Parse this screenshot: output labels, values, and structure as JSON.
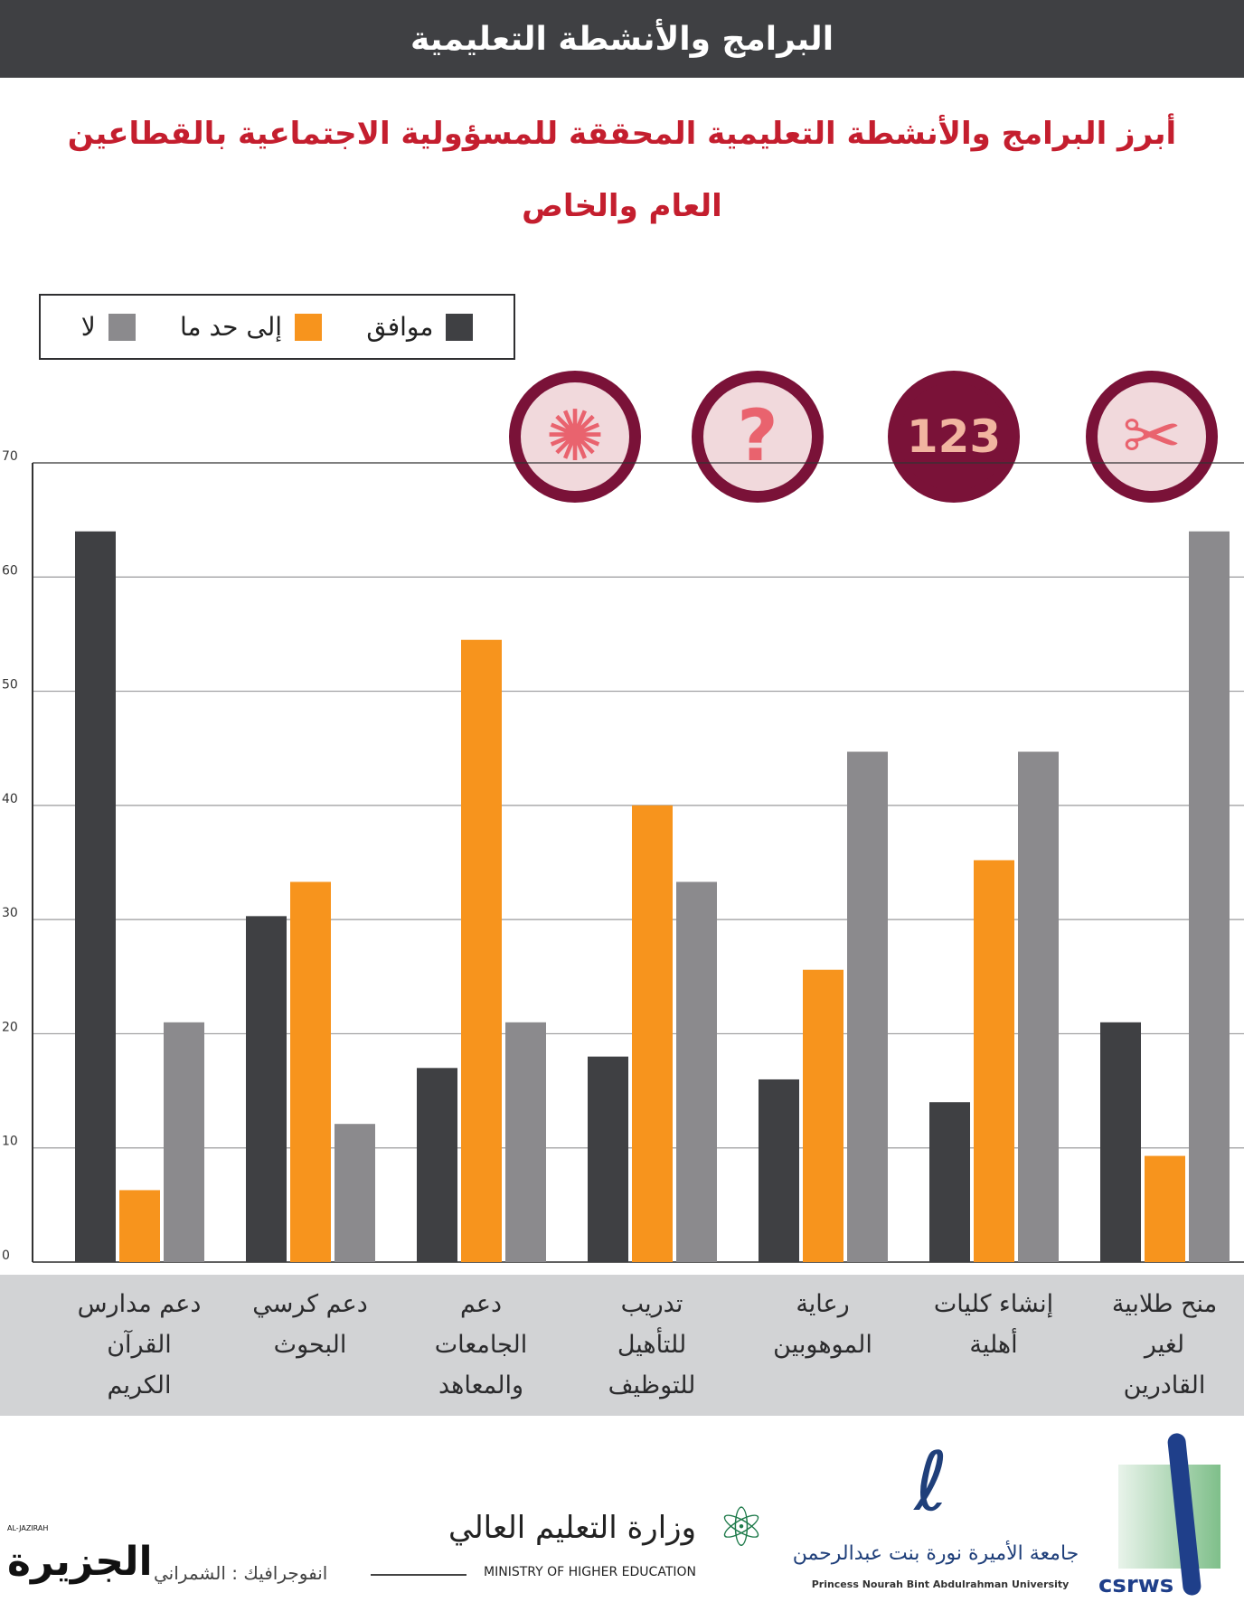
{
  "header": {
    "title": "البرامج والأنشطة التعليمية"
  },
  "subtitle": {
    "line1": "أبرز البرامج والأنشطة التعليمية المحققة للمسؤولية الاجتماعية بالقطاعين",
    "line2": "العام والخاص"
  },
  "icons": [
    "brain-icon",
    "question-mark-icon",
    "steps-icon",
    "scissors-pencil-icon"
  ],
  "chart_data": {
    "type": "bar",
    "title": "",
    "xlabel": "",
    "ylabel": "",
    "ylim": [
      0,
      70
    ],
    "yticks": [
      "0",
      "10",
      "20",
      "30",
      "40",
      "50",
      "60",
      "70"
    ],
    "grid": true,
    "legend_position": "top-left",
    "categories": [
      [
        "دعم مدارس",
        "القرآن",
        "الكريم"
      ],
      [
        "دعم كرسي",
        "البحوث"
      ],
      [
        "دعم",
        "الجامعات",
        "والمعاهد"
      ],
      [
        "تدريب",
        "للتأهيل",
        "للتوظيف"
      ],
      [
        "رعاية",
        "الموهوبين"
      ],
      [
        "إنشاء كليات",
        "أهلية"
      ],
      [
        "منح طلابية",
        "لغير",
        "القادرين"
      ]
    ],
    "series": [
      {
        "name": "موافق",
        "color": "#3f4043",
        "values": [
          64,
          30.3,
          17,
          18,
          16,
          14,
          21
        ]
      },
      {
        "name": "إلى حد ما",
        "color": "#f7941d",
        "values": [
          6.3,
          33.3,
          54.5,
          40,
          25.6,
          35.2,
          9.3
        ]
      },
      {
        "name": "لا",
        "color": "#8b8a8d",
        "values": [
          21,
          12.1,
          21,
          33.3,
          44.7,
          44.7,
          64
        ]
      }
    ]
  },
  "footer": {
    "credit": "انفوجرافيك : الشمراني",
    "logo_aljazirah": "الجزيرة",
    "logo_aljazirah_en": "AL-JAZIRAH",
    "logo_ministry_ar": "وزارة التعليم العالي",
    "logo_ministry_en": "MINISTRY OF HIGHER EDUCATION",
    "logo_pnu_ar": "جامعة الأميرة نورة بنت عبدالرحمن",
    "logo_pnu_en": "Princess Nourah Bint Abdulrahman University",
    "logo_csrws": "csrws"
  }
}
